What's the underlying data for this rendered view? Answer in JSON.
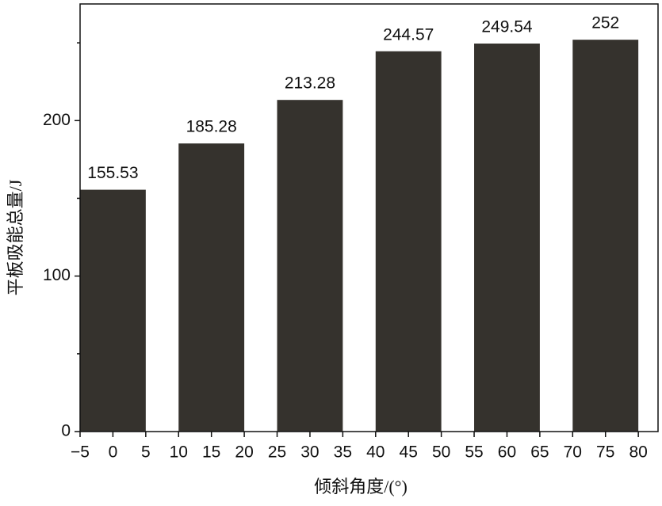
{
  "chart_data": {
    "type": "bar",
    "xlabel": "倾斜角度/(°)",
    "ylabel": "平板吸能总量/J",
    "x": [
      0,
      15,
      30,
      45,
      60,
      75
    ],
    "values": [
      155.53,
      185.28,
      213.28,
      244.57,
      249.54,
      252
    ],
    "bar_width": 10,
    "color": "#35322d",
    "xlim": [
      -5,
      83
    ],
    "xticks": [
      {
        "value": -5,
        "label": "−5"
      },
      0,
      5,
      10,
      15,
      20,
      25,
      30,
      35,
      40,
      45,
      50,
      55,
      60,
      65,
      70,
      75,
      80
    ],
    "ylim": [
      0,
      275
    ],
    "yticks": [
      0,
      100,
      200
    ],
    "yminor": [
      50,
      150,
      250
    ],
    "grid": false
  }
}
